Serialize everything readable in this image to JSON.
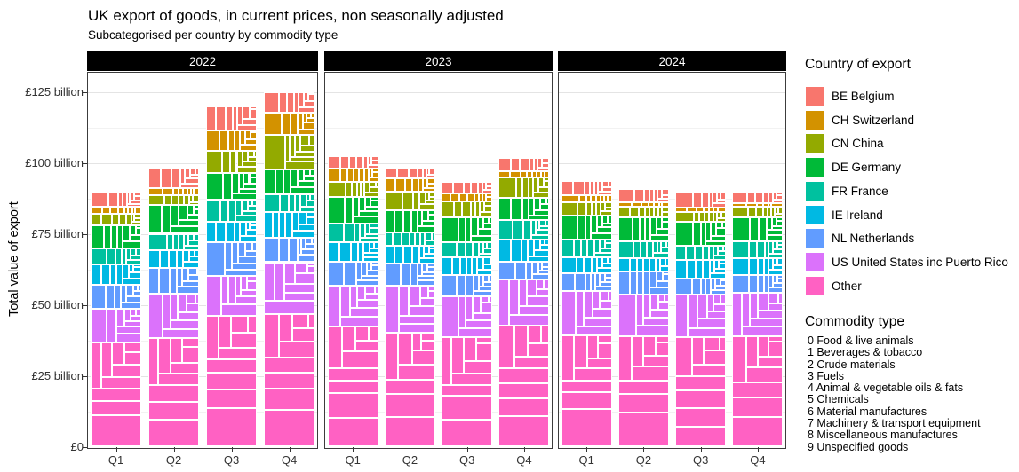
{
  "title": "UK export of goods, in current prices, non seasonally adjusted",
  "subtitle": "Subcategorised per country by commodity type",
  "y_axis": {
    "title": "Total value of export",
    "ticks": [
      {
        "label": "£0",
        "value": 0
      },
      {
        "label": "£25 billion",
        "value": 25
      },
      {
        "label": "£50 billion",
        "value": 50
      },
      {
        "label": "£75 billion",
        "value": 75
      },
      {
        "label": "£100 billion",
        "value": 100
      },
      {
        "label": "£125 billion",
        "value": 125
      }
    ]
  },
  "x_axis": {
    "labels": [
      "Q1",
      "Q2",
      "Q3",
      "Q4"
    ]
  },
  "facets": [
    "2022",
    "2023",
    "2024"
  ],
  "legend_country": {
    "title": "Country of export",
    "items": [
      {
        "label": "BE Belgium",
        "color": "#F8766D"
      },
      {
        "label": "CH Switzerland",
        "color": "#D39200"
      },
      {
        "label": "CN China",
        "color": "#93AA00"
      },
      {
        "label": "DE Germany",
        "color": "#00BA38"
      },
      {
        "label": "FR France",
        "color": "#00C19F"
      },
      {
        "label": "IE Ireland",
        "color": "#00B9E3"
      },
      {
        "label": "NL Netherlands",
        "color": "#619CFF"
      },
      {
        "label": "US United States inc Puerto Rico",
        "color": "#DB72FB"
      },
      {
        "label": "Other",
        "color": "#FF61C3"
      }
    ]
  },
  "legend_commodity": {
    "title": "Commodity type",
    "items": [
      "0 Food & live animals",
      "1 Beverages & tobacco",
      "2 Crude materials",
      "3 Fuels",
      "4 Animal & vegetable oils & fats",
      "5 Chemicals",
      "6 Material manufactures",
      "7 Machinery & transport equipment",
      "8 Miscellaneous manufactures",
      "9 Unspecified goods"
    ]
  },
  "chart_data": {
    "type": "bar",
    "variant": "stacked-mosaic",
    "title": "UK export of goods, in current prices, non seasonally adjusted",
    "xlabel": "",
    "ylabel": "Total value of export",
    "unit": "£ billion",
    "ylim": [
      0,
      132
    ],
    "yticks": [
      0,
      25,
      50,
      75,
      100,
      125
    ],
    "grid": true,
    "legend_position": "right",
    "facets": [
      "2022",
      "2023",
      "2024"
    ],
    "categories": [
      "Q1",
      "Q2",
      "Q3",
      "Q4"
    ],
    "series": [
      "BE Belgium",
      "CH Switzerland",
      "CN China",
      "DE Germany",
      "FR France",
      "IE Ireland",
      "NL Netherlands",
      "US United States inc Puerto Rico",
      "Other"
    ],
    "values": {
      "2022": [
        [
          5.2,
          2.4,
          4.0,
          8.1,
          5.7,
          7.2,
          8.3,
          11.9,
          36.8
        ],
        [
          7.2,
          2.6,
          3.4,
          10.1,
          5.7,
          6.2,
          9.3,
          15.5,
          38.3
        ],
        [
          8.4,
          7.2,
          7.8,
          9.3,
          7.8,
          7.2,
          12.0,
          14.0,
          46.1
        ],
        [
          7.1,
          8.0,
          11.9,
          8.8,
          6.4,
          8.9,
          8.7,
          18.4,
          46.6
        ]
      ],
      "2023": [
        [
          4.2,
          4.7,
          5.2,
          9.4,
          6.8,
          6.8,
          8.3,
          14.6,
          42.2
        ],
        [
          3.9,
          4.7,
          6.3,
          7.9,
          4.6,
          6.3,
          7.8,
          16.7,
          40.1
        ],
        [
          4.2,
          2.6,
          5.7,
          8.9,
          5.2,
          6.3,
          7.3,
          14.6,
          38.5
        ],
        [
          4.7,
          2.1,
          7.3,
          7.8,
          6.8,
          7.8,
          6.3,
          16.2,
          42.7
        ]
      ],
      "2024": [
        [
          4.9,
          2.6,
          4.7,
          8.3,
          6.3,
          5.7,
          6.3,
          15.6,
          39.1
        ],
        [
          4.7,
          1.6,
          3.7,
          8.3,
          6.0,
          4.6,
          8.1,
          14.8,
          38.9
        ],
        [
          5.7,
          1.3,
          3.7,
          8.3,
          4.9,
          6.6,
          5.7,
          15.1,
          38.5
        ],
        [
          4.2,
          1.3,
          3.7,
          8.3,
          6.0,
          5.9,
          6.3,
          15.3,
          38.9
        ]
      ]
    },
    "totals_estimate": {
      "2022": [
        89.6,
        98.3,
        119.8,
        124.8
      ],
      "2023": [
        102.2,
        98.3,
        93.3,
        101.7
      ],
      "2024": [
        93.5,
        90.7,
        89.8,
        89.9
      ]
    },
    "mosaic_note": "each country block is subdivided into unlabelled cells for the 10 commodity types; cell sizes estimated",
    "commodity_share_profile_estimate": [
      0.27,
      0.17,
      0.13,
      0.105,
      0.085,
      0.075,
      0.06,
      0.05,
      0.035,
      0.02
    ]
  }
}
